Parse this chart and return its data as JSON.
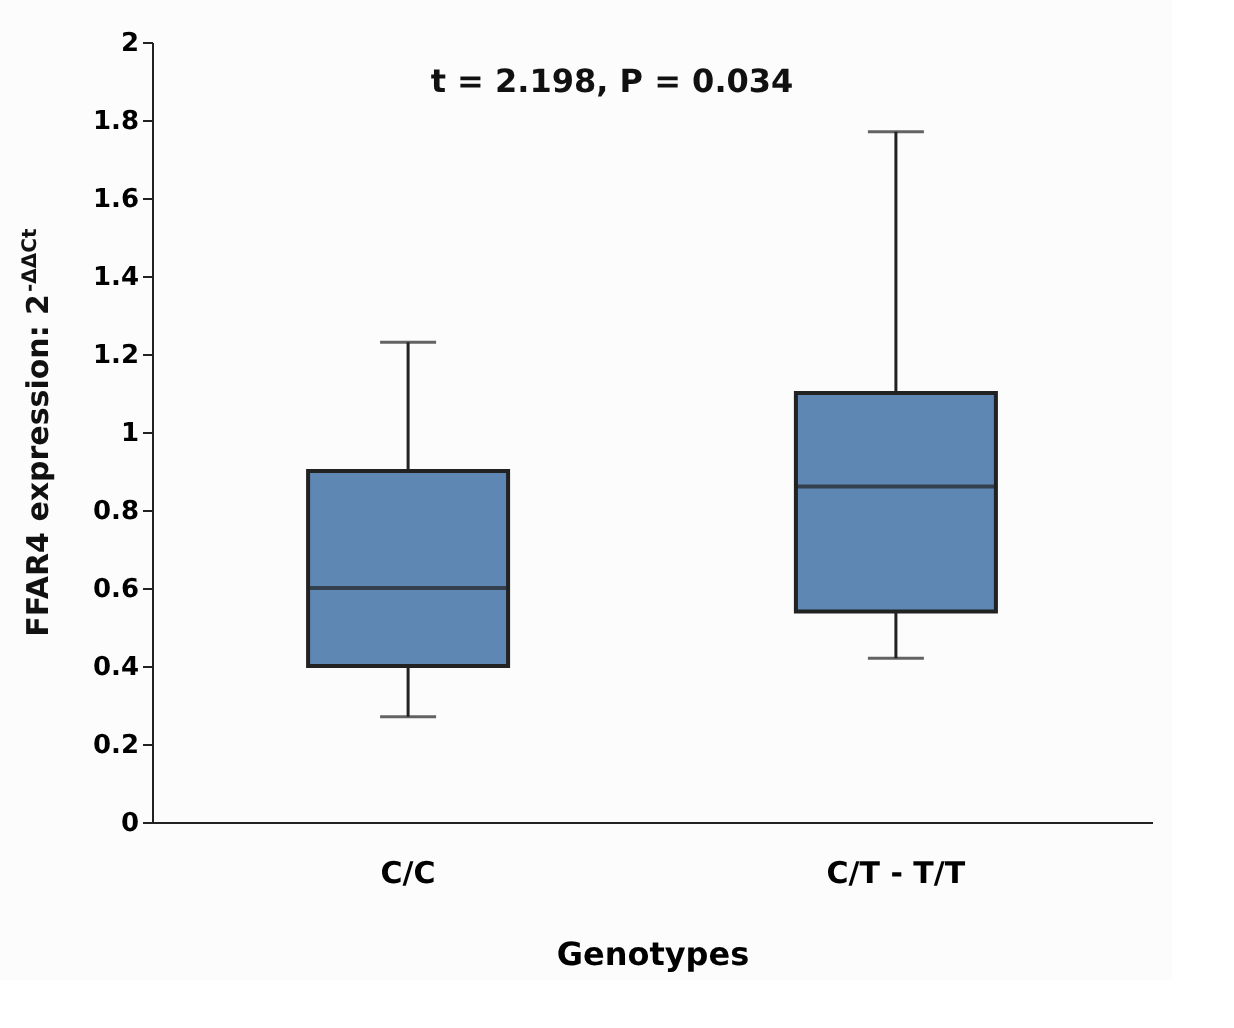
{
  "chart_data": {
    "type": "box",
    "xlabel": "Genotypes",
    "ylabel": "FFAR4 expression: 2$^{-ΔΔCt}$",
    "categories": [
      "C/C",
      "C/T - T/T"
    ],
    "series": [
      {
        "color": "#5f87b3",
        "boxes": [
          {
            "low": 0.27,
            "q1": 0.4,
            "median": 0.6,
            "q3": 0.9,
            "high": 1.23
          },
          {
            "low": 0.42,
            "q1": 0.54,
            "median": 0.86,
            "q3": 1.1,
            "high": 1.77
          }
        ]
      }
    ],
    "ylim": [
      0,
      2
    ],
    "yticks": [
      0,
      0.2,
      0.4,
      0.6,
      0.8,
      1,
      1.2,
      1.4,
      1.6,
      1.8,
      2
    ],
    "grid": false,
    "legend": false,
    "annotations": [
      "t = 2.198, P = 0.034"
    ]
  }
}
